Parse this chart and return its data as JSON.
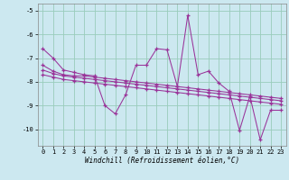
{
  "xlabel": "Windchill (Refroidissement éolien,°C)",
  "bg_color": "#cce8f0",
  "grid_color": "#99ccbb",
  "line_color": "#993399",
  "x_values": [
    0,
    1,
    2,
    3,
    4,
    5,
    6,
    7,
    8,
    9,
    10,
    11,
    12,
    13,
    14,
    15,
    16,
    17,
    18,
    19,
    20,
    21,
    22,
    23
  ],
  "series1": [
    -6.6,
    -7.0,
    -7.5,
    -7.6,
    -7.7,
    -7.75,
    -9.0,
    -9.35,
    -8.55,
    -7.3,
    -7.3,
    -6.6,
    -6.65,
    -8.2,
    -5.2,
    -7.7,
    -7.55,
    -8.05,
    -8.4,
    -10.05,
    -8.6,
    -10.45,
    -9.2,
    -9.2
  ],
  "series2": [
    -7.3,
    -7.55,
    -7.7,
    -7.75,
    -7.75,
    -7.8,
    -7.85,
    -7.9,
    -7.95,
    -8.0,
    -8.05,
    -8.1,
    -8.15,
    -8.2,
    -8.25,
    -8.3,
    -8.35,
    -8.4,
    -8.45,
    -8.5,
    -8.55,
    -8.6,
    -8.65,
    -8.7
  ],
  "series3": [
    -7.5,
    -7.65,
    -7.75,
    -7.8,
    -7.85,
    -7.9,
    -7.95,
    -8.0,
    -8.05,
    -8.1,
    -8.15,
    -8.2,
    -8.25,
    -8.3,
    -8.35,
    -8.4,
    -8.45,
    -8.5,
    -8.55,
    -8.6,
    -8.65,
    -8.7,
    -8.75,
    -8.8
  ],
  "series4": [
    -7.7,
    -7.8,
    -7.9,
    -7.95,
    -8.0,
    -8.05,
    -8.1,
    -8.15,
    -8.2,
    -8.25,
    -8.3,
    -8.35,
    -8.4,
    -8.45,
    -8.5,
    -8.55,
    -8.6,
    -8.65,
    -8.7,
    -8.75,
    -8.8,
    -8.85,
    -8.9,
    -8.95
  ],
  "ylim": [
    -10.7,
    -4.7
  ],
  "xlim": [
    -0.5,
    23.5
  ],
  "yticks": [
    -10,
    -9,
    -8,
    -7,
    -6,
    -5
  ],
  "xticks": [
    0,
    1,
    2,
    3,
    4,
    5,
    6,
    7,
    8,
    9,
    10,
    11,
    12,
    13,
    14,
    15,
    16,
    17,
    18,
    19,
    20,
    21,
    22,
    23
  ]
}
